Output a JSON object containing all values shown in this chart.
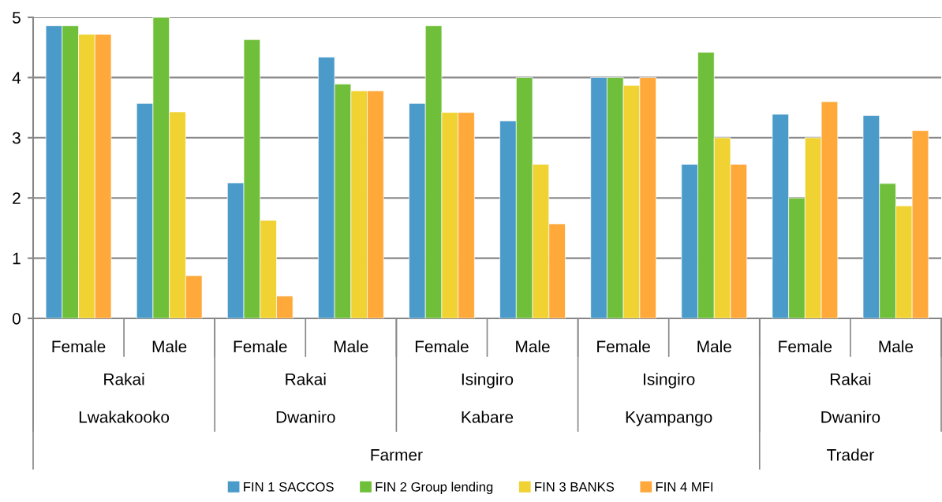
{
  "chart_data": {
    "type": "bar",
    "categories": [
      "Female",
      "Male",
      "Female",
      "Male",
      "Female",
      "Male",
      "Female",
      "Male",
      "Female",
      "Male"
    ],
    "series": [
      {
        "name": "FIN 1 SACCOS",
        "color": "#4a9bc9",
        "values": [
          4.86,
          3.57,
          2.25,
          4.34,
          3.57,
          3.28,
          4.0,
          2.56,
          3.39,
          3.37
        ]
      },
      {
        "name": "FIN 2 Group lending",
        "color": "#70bf3a",
        "values": [
          4.86,
          5.0,
          4.63,
          3.89,
          4.86,
          4.0,
          4.0,
          4.42,
          2.0,
          2.24
        ]
      },
      {
        "name": "FIN 3 BANKS",
        "color": "#f0d232",
        "values": [
          4.72,
          3.43,
          1.63,
          3.78,
          3.42,
          2.56,
          3.87,
          3.0,
          3.0,
          1.87
        ]
      },
      {
        "name": "FIN 4 MFI",
        "color": "#fea93a",
        "values": [
          4.72,
          0.71,
          0.37,
          3.78,
          3.42,
          1.57,
          4.0,
          2.56,
          3.6,
          3.12
        ]
      }
    ],
    "annotations": [
      "Rakai",
      "Rakai",
      "Isingiro",
      "Isingiro",
      "Rakai",
      "Lwakakooko",
      "Dwaniro",
      "Kabare",
      "Kyampango",
      "Dwaniro",
      "Farmer",
      "Trader"
    ],
    "ylim": [
      0,
      5
    ],
    "yticks": [
      0,
      1,
      2,
      3,
      4,
      5
    ],
    "grid": "y",
    "legend": "bottom"
  }
}
